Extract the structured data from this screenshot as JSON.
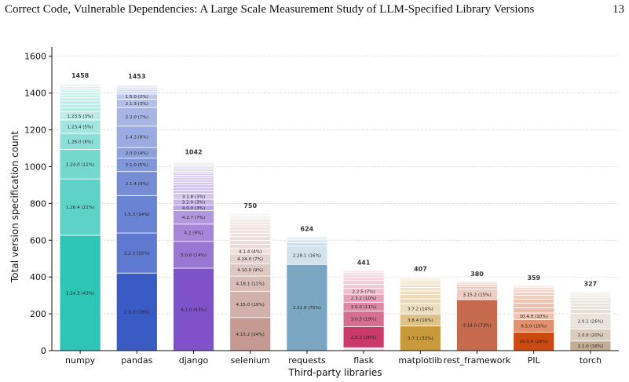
{
  "header": {
    "title": "Correct Code, Vulnerable Dependencies: A Large Scale Measurement Study of LLM-Specified Library Versions",
    "page_number": "13"
  },
  "chart_data": {
    "type": "bar",
    "stacked": true,
    "xlabel": "Third-party libraries",
    "ylabel": "Total version specification count",
    "ylim": [
      0,
      1650
    ],
    "yticks": [
      0,
      200,
      400,
      600,
      800,
      1000,
      1200,
      1400,
      1600
    ],
    "grid": "horizontal dashed",
    "categories": [
      "numpy",
      "pandas",
      "django",
      "selenium",
      "requests",
      "flask",
      "matplotlib",
      "rest_framework",
      "PIL",
      "torch"
    ],
    "totals": [
      1458,
      1453,
      1042,
      750,
      624,
      441,
      407,
      380,
      359,
      327
    ],
    "colors": [
      "#2ec4b6",
      "#3b5bc4",
      "#8052c9",
      "#c49a93",
      "#7aa6c2",
      "#c93a6a",
      "#c89a3c",
      "#c66a4e",
      "#cc4a12",
      "#c2ac94"
    ],
    "bars": [
      {
        "category": "numpy",
        "labeled": [
          {
            "version": "1.24.3",
            "pct": 43,
            "label": "1.24.3 (43%)"
          },
          {
            "version": "1.26.4",
            "pct": 21,
            "label": "1.26.4 (21%)"
          },
          {
            "version": "1.24.0",
            "pct": 11,
            "label": "1.24.0 (11%)"
          },
          {
            "version": "1.26.0",
            "pct": 6,
            "label": "1.26.0 (6%)"
          },
          {
            "version": "1.23.4",
            "pct": 5,
            "label": "1.23.4 (5%)"
          },
          {
            "version": "1.23.5",
            "pct": 3,
            "label": "1.23.5 (3%)"
          }
        ],
        "minor_segments": 14
      },
      {
        "category": "pandas",
        "labeled": [
          {
            "version": "2.0.3",
            "pct": 29,
            "label": "2.0.3 (29%)"
          },
          {
            "version": "2.2.2",
            "pct": 15,
            "label": "2.2.2 (15%)"
          },
          {
            "version": "1.5.3",
            "pct": 14,
            "label": "1.5.3 (14%)"
          },
          {
            "version": "2.1.4",
            "pct": 9,
            "label": "2.1.4 (9%)"
          },
          {
            "version": "2.1.0",
            "pct": 5,
            "label": "2.1.0 (5%)"
          },
          {
            "version": "2.0.0",
            "pct": 4,
            "label": "2.0.0 (4%)"
          },
          {
            "version": "1.4.3",
            "pct": 8,
            "label": "1.4.3 (8%)"
          },
          {
            "version": "2.2.0",
            "pct": 7,
            "label": "2.2.0 (7%)"
          },
          {
            "version": "2.1.3",
            "pct": 3,
            "label": "2.1.3 (3%)"
          },
          {
            "version": "1.5.0",
            "pct": 2,
            "label": "1.5.0 (2%)"
          }
        ],
        "minor_segments": 8
      },
      {
        "category": "django",
        "labeled": [
          {
            "version": "4.2.0",
            "pct": 43,
            "label": "4.2.0 (43%)"
          },
          {
            "version": "5.0.6",
            "pct": 14,
            "label": "5.0.6 (14%)"
          },
          {
            "version": "4.2",
            "pct": 9,
            "label": "4.2 (9%)"
          },
          {
            "version": "4.2.7",
            "pct": 7,
            "label": "4.2.7 (7%)"
          },
          {
            "version": "4.0.0",
            "pct": 3,
            "label": "4.0.0 (3%)"
          },
          {
            "version": "3.2.0",
            "pct": 3,
            "label": "3.2.0 (3%)"
          },
          {
            "version": "3.1.8",
            "pct": 3,
            "label": "3.1.8 (3%)"
          }
        ],
        "minor_segments": 22
      },
      {
        "category": "selenium",
        "labeled": [
          {
            "version": "4.15.2",
            "pct": 24,
            "label": "4.15.2 (24%)"
          },
          {
            "version": "4.15.0",
            "pct": 19,
            "label": "4.15.0 (19%)"
          },
          {
            "version": "4.18.1",
            "pct": 11,
            "label": "4.18.1 (11%)"
          },
          {
            "version": "4.10.0",
            "pct": 9,
            "label": "4.10.0 (9%)"
          },
          {
            "version": "4.24.0",
            "pct": 7,
            "label": "4.24.0 (7%)"
          },
          {
            "version": "4.1.4",
            "pct": 4,
            "label": "4.1.4 (4%)"
          }
        ],
        "minor_segments": 16
      },
      {
        "category": "requests",
        "labeled": [
          {
            "version": "2.31.0",
            "pct": 75,
            "label": "2.31.0 (75%)"
          },
          {
            "version": "2.28.1",
            "pct": 16,
            "label": "2.28.1 (16%)"
          }
        ],
        "minor_segments": 5
      },
      {
        "category": "flask",
        "labeled": [
          {
            "version": "2.3.3",
            "pct": 26,
            "label": "2.3.3 (26%)"
          },
          {
            "version": "3.0.3",
            "pct": 19,
            "label": "3.0.3 (19%)"
          },
          {
            "version": "3.0.0",
            "pct": 11,
            "label": "3.0.0 (11%)"
          },
          {
            "version": "2.3.2",
            "pct": 10,
            "label": "2.3.2 (10%)"
          },
          {
            "version": "2.2.5",
            "pct": 7,
            "label": "2.2.5 (7%)"
          }
        ],
        "minor_segments": 8,
        "bottom_minor_segments": 3
      },
      {
        "category": "matplotlib",
        "labeled": [
          {
            "version": "3.7.1",
            "pct": 33,
            "label": "3.7.1 (33%)"
          },
          {
            "version": "3.8.4",
            "pct": 16,
            "label": "3.8.4 (16%)"
          },
          {
            "version": "3.7.2",
            "pct": 14,
            "label": "3.7.2 (14%)"
          }
        ],
        "minor_segments": 11
      },
      {
        "category": "rest_framework",
        "labeled": [
          {
            "version": "3.14.0",
            "pct": 73,
            "label": "3.14.0 (73%)"
          },
          {
            "version": "3.15.2",
            "pct": 15,
            "label": "3.15.2 (15%)"
          }
        ],
        "minor_segments": 5
      },
      {
        "category": "PIL",
        "labeled": [
          {
            "version": "10.0.0",
            "pct": 28,
            "label": "10.0.0 (28%)"
          },
          {
            "version": "9.5.0",
            "pct": 19,
            "label": "9.5.0 (19%)"
          },
          {
            "version": "10.4.0",
            "pct": 10,
            "label": "10.4.0 (10%)"
          }
        ],
        "minor_segments": 10
      },
      {
        "category": "torch",
        "labeled": [
          {
            "version": "2.1.0",
            "pct": 16,
            "label": "2.1.0 (16%)"
          },
          {
            "version": "2.0.0",
            "pct": 20,
            "label": "2.0.0 (20%)"
          },
          {
            "version": "2.0.1",
            "pct": 26,
            "label": "2.0.1 (26%)"
          }
        ],
        "minor_segments": 11
      }
    ]
  }
}
